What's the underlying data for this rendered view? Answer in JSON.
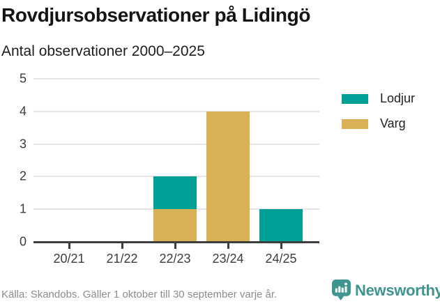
{
  "header": {
    "title": "Rovdjursobservationer på Lidingö",
    "subtitle": "Antal observationer 2000–2025"
  },
  "chart_data": {
    "type": "bar",
    "stacked": true,
    "title": "Rovdjursobservationer på Lidingö",
    "subtitle": "Antal observationer 2000–2025",
    "categories": [
      "20/21",
      "21/22",
      "22/23",
      "23/24",
      "24/25"
    ],
    "series": [
      {
        "name": "Lodjur",
        "color": "#00a096",
        "values": [
          0,
          0,
          1,
          0,
          1
        ]
      },
      {
        "name": "Varg",
        "color": "#d8b056",
        "values": [
          0,
          0,
          1,
          4,
          0
        ]
      }
    ],
    "stack_order_bottom_to_top": [
      "Varg",
      "Lodjur"
    ],
    "xlabel": "",
    "ylabel": "",
    "ylim": [
      0,
      5
    ],
    "yticks": [
      0,
      1,
      2,
      3,
      4,
      5
    ],
    "grid": true,
    "legend_position": "right"
  },
  "footer": {
    "source": "Källa: Skandobs. Gäller 1 oktober till 30 september varje år.",
    "brand": "Newsworthy",
    "brand_color": "#3e948e"
  }
}
